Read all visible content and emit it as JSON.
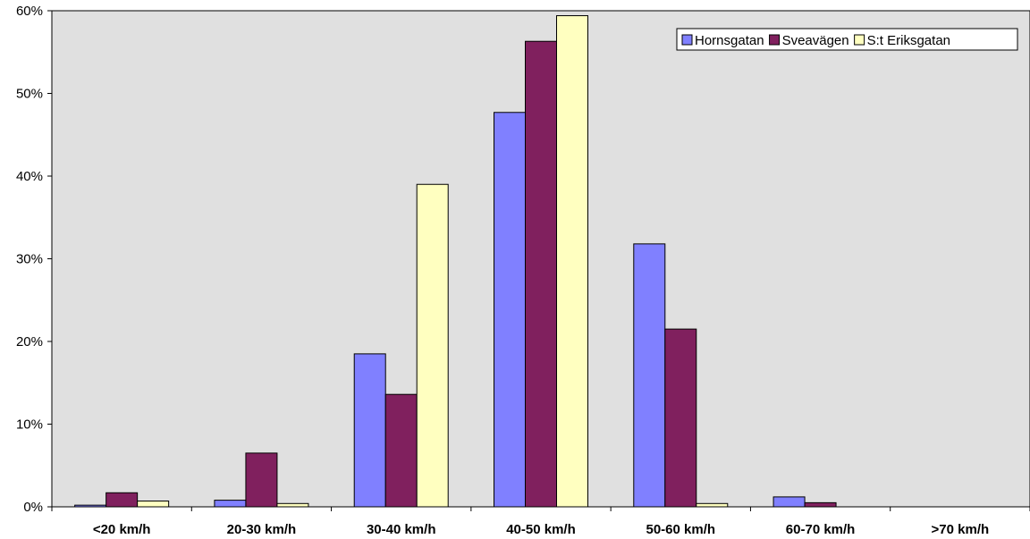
{
  "chart_data": {
    "type": "bar",
    "categories": [
      "<20 km/h",
      "20-30 km/h",
      "30-40 km/h",
      "40-50 km/h",
      "50-60 km/h",
      "60-70 km/h",
      ">70 km/h"
    ],
    "series": [
      {
        "name": "Hornsgatan",
        "color": "#8080ff",
        "values": [
          0.2,
          0.8,
          18.5,
          47.7,
          31.8,
          1.2,
          0
        ]
      },
      {
        "name": "Sveavägen",
        "color": "#80205e",
        "values": [
          1.7,
          6.5,
          13.6,
          56.3,
          21.5,
          0.5,
          0
        ]
      },
      {
        "name": "S:t Eriksgatan",
        "color": "#ffffc0",
        "values": [
          0.7,
          0.4,
          39.0,
          59.4,
          0.4,
          0,
          0
        ]
      }
    ],
    "ylim": [
      0,
      60
    ],
    "yticks": [
      "0%",
      "10%",
      "20%",
      "30%",
      "40%",
      "50%",
      "60%"
    ],
    "grid": false,
    "legend_position": "top-right",
    "plot_background": "#e0e0e0"
  }
}
